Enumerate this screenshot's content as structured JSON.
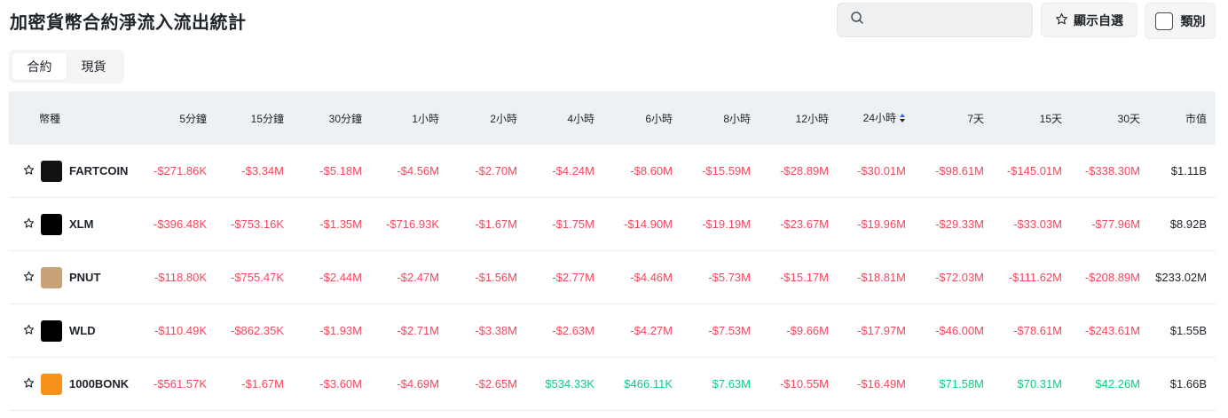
{
  "page": {
    "title": "加密貨幣合約淨流入流出統計"
  },
  "toolbar": {
    "search_placeholder": "",
    "favorites_label": "顯示自選",
    "category_label": "類別"
  },
  "tabs": [
    {
      "label": "合約",
      "active": true
    },
    {
      "label": "現貨",
      "active": false
    }
  ],
  "table": {
    "headers": [
      "幣種",
      "5分鐘",
      "15分鐘",
      "30分鐘",
      "1小時",
      "2小時",
      "4小時",
      "6小時",
      "8小時",
      "12小時",
      "24小時",
      "7天",
      "15天",
      "30天",
      "市值"
    ],
    "sorted_column": "24小時",
    "rows": [
      {
        "coin": "FARTCOIN",
        "logo_color": "#111111",
        "values": [
          "-$271.86K",
          "-$3.34M",
          "-$5.18M",
          "-$4.56M",
          "-$2.70M",
          "-$4.24M",
          "-$8.60M",
          "-$15.59M",
          "-$28.89M",
          "-$30.01M",
          "-$98.61M",
          "-$145.01M",
          "-$338.30M"
        ],
        "market_cap": "$1.11B"
      },
      {
        "coin": "XLM",
        "logo_color": "#000000",
        "values": [
          "-$396.48K",
          "-$753.16K",
          "-$1.35M",
          "-$716.93K",
          "-$1.67M",
          "-$1.75M",
          "-$14.90M",
          "-$19.19M",
          "-$23.67M",
          "-$19.96M",
          "-$29.33M",
          "-$33.03M",
          "-$77.96M"
        ],
        "market_cap": "$8.92B"
      },
      {
        "coin": "PNUT",
        "logo_color": "#c9a27a",
        "values": [
          "-$118.80K",
          "-$755.47K",
          "-$2.44M",
          "-$2.47M",
          "-$1.56M",
          "-$2.77M",
          "-$4.46M",
          "-$5.73M",
          "-$15.17M",
          "-$18.81M",
          "-$72.03M",
          "-$111.62M",
          "-$208.89M"
        ],
        "market_cap": "$233.02M"
      },
      {
        "coin": "WLD",
        "logo_color": "#000000",
        "values": [
          "-$110.49K",
          "-$862.35K",
          "-$1.93M",
          "-$2.71M",
          "-$3.38M",
          "-$2.63M",
          "-$4.27M",
          "-$7.53M",
          "-$9.66M",
          "-$17.97M",
          "-$46.00M",
          "-$78.61M",
          "-$243.61M"
        ],
        "market_cap": "$1.55B"
      },
      {
        "coin": "1000BONK",
        "logo_color": "#f7931a",
        "values": [
          "-$561.57K",
          "-$1.67M",
          "-$3.60M",
          "-$4.69M",
          "-$2.65M",
          "$534.33K",
          "$466.11K",
          "$7.63M",
          "-$10.55M",
          "-$16.49M",
          "$71.58M",
          "$70.31M",
          "$42.26M"
        ],
        "market_cap": "$1.66B"
      }
    ]
  },
  "colors": {
    "negative": "#f6465d",
    "positive": "#0ecb81",
    "header_bg": "#eef1f4"
  }
}
